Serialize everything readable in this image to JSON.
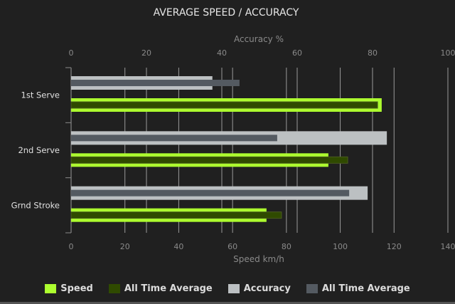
{
  "chart_data": {
    "type": "bar",
    "orientation": "horizontal",
    "title": "AVERAGE SPEED / ACCURACY",
    "categories": [
      "1st Serve",
      "2nd Serve",
      "Grnd Stroke"
    ],
    "top_axis": {
      "label": "Accuracy %",
      "range": [
        0,
        100
      ],
      "ticks": [
        "0",
        "20",
        "40",
        "60",
        "80",
        "100"
      ]
    },
    "bottom_axis": {
      "label": "Speed km/h",
      "range": [
        0,
        140
      ],
      "ticks": [
        "0",
        "20",
        "40",
        "60",
        "80",
        "100",
        "120",
        "140"
      ]
    },
    "grid": true,
    "legend_position": "bottom",
    "series": [
      {
        "name": "Speed",
        "axis": "bottom",
        "color": "#adff2f",
        "values": [
          115.4,
          95.6,
          72.6
        ]
      },
      {
        "name": "All Time Average",
        "axis": "bottom",
        "color": "#2f4a00",
        "values": [
          114.4,
          103.3,
          78.7
        ]
      },
      {
        "name": "Accuracy",
        "axis": "top",
        "color": "#bcc0c2",
        "values": [
          37.5,
          83.8,
          78.7
        ]
      },
      {
        "name": "All Time Average",
        "axis": "top",
        "color": "#545a61",
        "values": [
          44.7,
          54.7,
          73.8
        ]
      }
    ]
  }
}
